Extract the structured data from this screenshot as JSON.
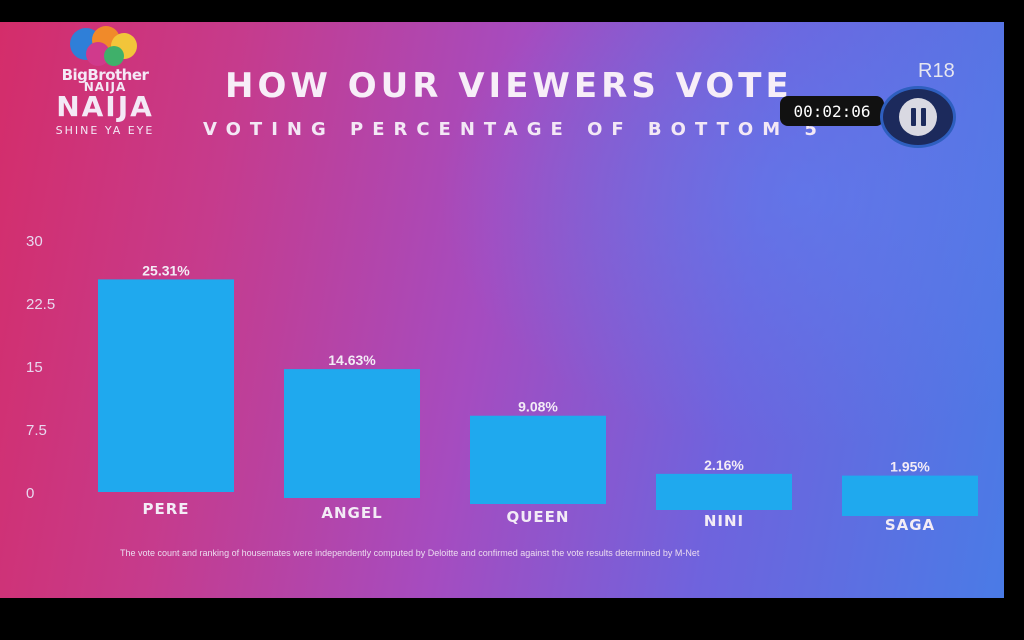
{
  "branding": {
    "logo_line1": "BigBrother",
    "logo_line2": "NAIJA",
    "logo_line3": "NAIJA",
    "logo_tagline": "SHINE YA EYE"
  },
  "overlay": {
    "rating": "R18",
    "timer": "00:02:06"
  },
  "footnote": "The vote count and ranking of housemates were independently computed by Deloitte and confirmed against the vote results determined by M-Net",
  "colors": {
    "bar": "#1fa9ee",
    "text": "#f3ecf6",
    "axis": "#e8d8ef"
  },
  "chart_data": {
    "type": "bar",
    "title": "HOW OUR VIEWERS VOTE",
    "subtitle": "VOTING PERCENTAGE OF BOTTOM 5",
    "categories": [
      "PERE",
      "ANGEL",
      "QUEEN",
      "NINI",
      "SAGA"
    ],
    "values": [
      25.31,
      14.63,
      9.08,
      2.16,
      1.95
    ],
    "value_labels": [
      "25.31%",
      "14.63%",
      "9.08%",
      "2.16%",
      "1.95%"
    ],
    "ylim": [
      0,
      30
    ],
    "yticks": [
      "0",
      "7.5",
      "15",
      "22.5",
      "30"
    ],
    "ytick_values": [
      0,
      7.5,
      15,
      22.5,
      30
    ],
    "xlabel": "",
    "ylabel": "",
    "grid": false,
    "legend": "none"
  }
}
